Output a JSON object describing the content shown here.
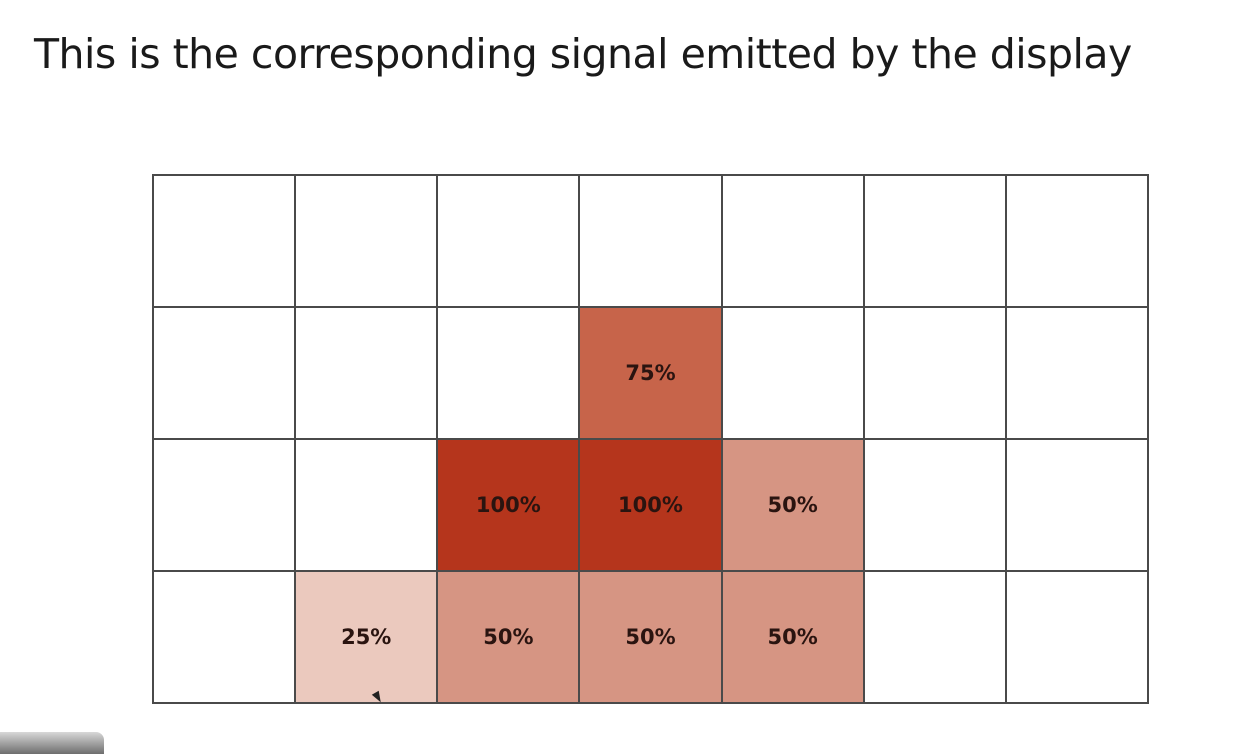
{
  "heading": "This is the corresponding signal emitted by the display",
  "grid": {
    "columns": 7,
    "rows": 4,
    "colors": {
      "0": "#ffffff",
      "25": "#ebc9be",
      "50": "#d69583",
      "75": "#c7644a",
      "100": "#b5351c"
    },
    "cells": [
      [
        0,
        0,
        0,
        0,
        0,
        0,
        0
      ],
      [
        0,
        0,
        0,
        75,
        0,
        0,
        0
      ],
      [
        0,
        0,
        100,
        100,
        50,
        0,
        0
      ],
      [
        0,
        25,
        50,
        50,
        50,
        0,
        0
      ]
    ],
    "labels": [
      [
        "",
        "",
        "",
        "",
        "",
        "",
        ""
      ],
      [
        "",
        "",
        "",
        "75%",
        "",
        "",
        ""
      ],
      [
        "",
        "",
        "100%",
        "100%",
        "50%",
        "",
        ""
      ],
      [
        "",
        "25%",
        "50%",
        "50%",
        "50%",
        "",
        ""
      ]
    ]
  }
}
